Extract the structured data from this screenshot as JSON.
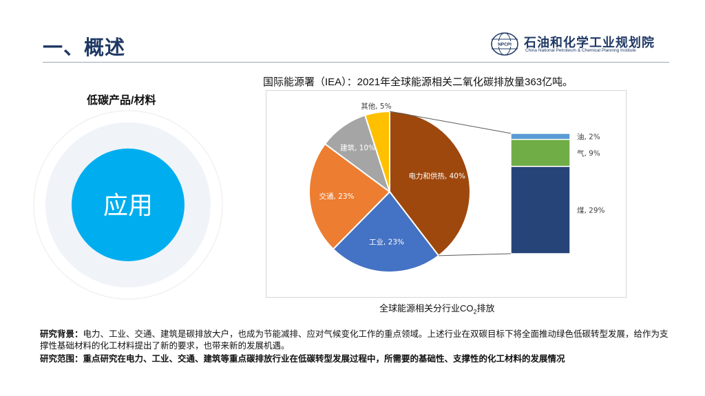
{
  "header": {
    "title": "一、概述",
    "logo_badge": "NPCPI",
    "logo_cn": "石油和化学工业规划院",
    "logo_en": "China National Petroleum & Chemical Planning Institute"
  },
  "left": {
    "heading": "低碳产品/材料",
    "circle_label": "应用",
    "colors": {
      "outer": "#f0f4f9",
      "inner": "#00aeef"
    }
  },
  "chart": {
    "caption": "国际能源署（IEA）：2021年全球能源相关二氧化碳排放量363亿吨。",
    "subcaption_prefix": "全球能源相关分行业CO",
    "subcaption_sub": "2",
    "subcaption_suffix": "排放"
  },
  "chart_data": {
    "type": "pie",
    "slices": [
      {
        "label": "电力和供热, 40%",
        "value": 40,
        "color": "#9e480e"
      },
      {
        "label": "工业, 23%",
        "value": 23,
        "color": "#4472c4"
      },
      {
        "label": "交通, 23%",
        "value": 23,
        "color": "#ed7d31"
      },
      {
        "label": "建筑, 10%",
        "value": 10,
        "color": "#a5a5a5"
      },
      {
        "label": "其他, 5%",
        "value": 5,
        "color": "#ffc000"
      }
    ],
    "breakdown": {
      "of": "电力和供热",
      "segments": [
        {
          "label": "油, 2%",
          "value": 2,
          "color": "#5b9bd5"
        },
        {
          "label": "气, 9%",
          "value": 9,
          "color": "#70ad47"
        },
        {
          "label": "煤, 29%",
          "value": 29,
          "color": "#264478"
        }
      ]
    }
  },
  "text": {
    "background_label": "研究背景：",
    "background_body": "电力、工业、交通、建筑是碳排放大户，也成为节能减排、应对气候变化工作的重点领域。上述行业在双碳目标下将全面推动绿色低碳转型发展，给作为支撑性基础材料的化工材料提出了新的要求，也带来新的发展机遇。",
    "scope_label": "研究范围：",
    "scope_body": "重点研究在电力、工业、交通、建筑等重点碳排放行业在低碳转型发展过程中，所需要的基础性、支撑性的化工材料的发展情况"
  }
}
